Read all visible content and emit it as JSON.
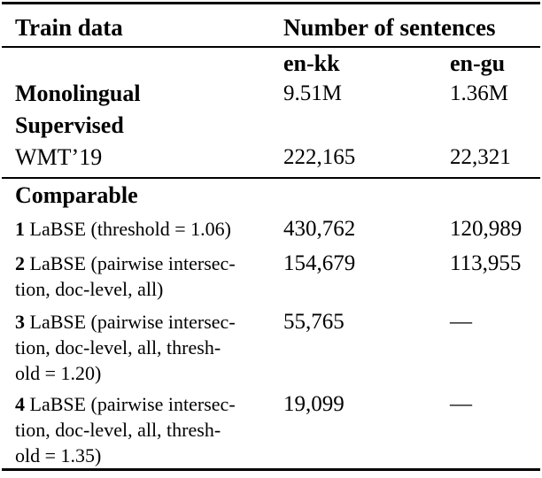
{
  "colors": {
    "text": "#000000",
    "rule": "#000000",
    "background": "#ffffff"
  },
  "table": {
    "header": {
      "train_data": "Train data",
      "number_of_sentences": "Number of sentences"
    },
    "columns": {
      "en_kk": "en-kk",
      "en_gu": "en-gu"
    },
    "rows": {
      "monolingual": {
        "label": "Monolingual",
        "en_kk": "9.51M",
        "en_gu": "1.36M"
      },
      "supervised": {
        "label": "Supervised"
      },
      "wmt19": {
        "label": "WMT’19",
        "en_kk": "222,165",
        "en_gu": "22,321"
      },
      "comparable": {
        "label": "Comparable"
      }
    },
    "labse": [
      {
        "num": "1",
        "desc": "LaBSE (threshold = 1.06)",
        "en_kk": "430,762",
        "en_gu": "120,989"
      },
      {
        "num": "2",
        "desc": "LaBSE (pairwise intersec-\ntion, doc-level, all)",
        "en_kk": "154,679",
        "en_gu": "113,955"
      },
      {
        "num": "3",
        "desc": "LaBSE (pairwise intersec-\ntion, doc-level, all, thresh-\nold = 1.20)",
        "en_kk": "55,765",
        "en_gu": "—"
      },
      {
        "num": "4",
        "desc": "LaBSE (pairwise intersec-\ntion, doc-level, all, thresh-\nold = 1.35)",
        "en_kk": "19,099",
        "en_gu": "—"
      }
    ]
  }
}
